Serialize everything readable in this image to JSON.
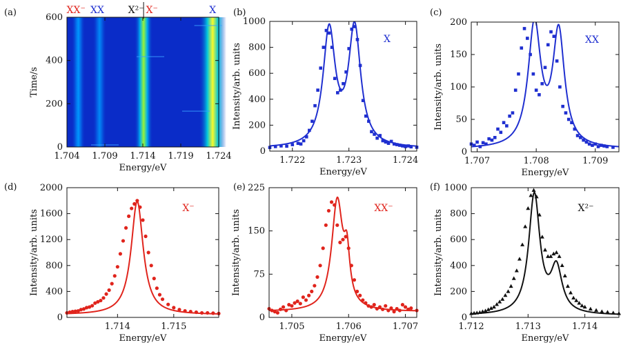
{
  "colors": {
    "blue": "#1f2fd0",
    "red": "#e0241c",
    "black": "#111111",
    "darkred": "#c0141e"
  },
  "chart_data": [
    {
      "id": "a",
      "panel_label": "(a)",
      "type": "heatmap",
      "xlabel": "Energy/eV",
      "ylabel": "Time/s",
      "xlim": [
        1.704,
        1.724
      ],
      "ylim": [
        0,
        600
      ],
      "xticks": [
        "1.704",
        "1.709",
        "1.714",
        "1.719",
        "1.724"
      ],
      "yticks": [
        "0",
        "200",
        "400",
        "600"
      ],
      "lines": [
        {
          "energy": 1.7055,
          "intensity": 0.35,
          "width": 0.0003
        },
        {
          "energy": 1.7083,
          "intensity": 0.3,
          "width": 0.0003
        },
        {
          "energy": 1.7141,
          "intensity": 0.85,
          "width": 0.0004
        },
        {
          "energy": 1.7232,
          "intensity": 1.0,
          "width": 0.0006
        }
      ],
      "top_labels": [
        {
          "text": "XX⁻",
          "energy": 1.7052,
          "color": "red"
        },
        {
          "text": "XX",
          "energy": 1.708,
          "color": "blue"
        },
        {
          "text": "X²⁻",
          "energy": 1.7131,
          "color": "black"
        },
        {
          "text": "X⁻",
          "energy": 1.7152,
          "color": "red"
        },
        {
          "text": "X",
          "energy": 1.7232,
          "color": "blue"
        }
      ]
    },
    {
      "id": "b",
      "panel_label": "(b)",
      "type": "line",
      "color": "blue",
      "marker": "square",
      "annotation": "X",
      "xlabel": "Energy/eV",
      "ylabel": "Intensity/arb. units",
      "xlim": [
        1.7216,
        1.7242
      ],
      "ylim": [
        0,
        1000
      ],
      "xticks": [
        1.722,
        1.723,
        1.724
      ],
      "xticklabels": [
        "1.722",
        "1.723",
        "1.724"
      ],
      "yticks": [
        0,
        200,
        400,
        600,
        800,
        1000
      ],
      "yticklabels": [
        "0",
        "200",
        "400",
        "600",
        "800",
        "1000"
      ],
      "fit": {
        "baseline": 20,
        "peaks": [
          {
            "x0": 1.72265,
            "amp": 890,
            "w": 0.00013
          },
          {
            "x0": 1.7231,
            "amp": 910,
            "w": 0.00013
          }
        ]
      },
      "points": [
        [
          1.7216,
          28
        ],
        [
          1.7217,
          35
        ],
        [
          1.7218,
          40
        ],
        [
          1.7219,
          38
        ],
        [
          1.722,
          50
        ],
        [
          1.7221,
          60
        ],
        [
          1.72215,
          55
        ],
        [
          1.7222,
          80
        ],
        [
          1.72225,
          110
        ],
        [
          1.7223,
          160
        ],
        [
          1.72235,
          230
        ],
        [
          1.7224,
          350
        ],
        [
          1.72245,
          470
        ],
        [
          1.7225,
          640
        ],
        [
          1.72255,
          800
        ],
        [
          1.7226,
          930
        ],
        [
          1.72265,
          910
        ],
        [
          1.7227,
          800
        ],
        [
          1.72275,
          560
        ],
        [
          1.7228,
          450
        ],
        [
          1.72285,
          470
        ],
        [
          1.7229,
          520
        ],
        [
          1.72295,
          610
        ],
        [
          1.723,
          790
        ],
        [
          1.72305,
          940
        ],
        [
          1.7231,
          960
        ],
        [
          1.72315,
          860
        ],
        [
          1.7232,
          660
        ],
        [
          1.72325,
          390
        ],
        [
          1.7233,
          270
        ],
        [
          1.72335,
          230
        ],
        [
          1.7234,
          150
        ],
        [
          1.72345,
          130
        ],
        [
          1.7235,
          100
        ],
        [
          1.72355,
          120
        ],
        [
          1.7236,
          80
        ],
        [
          1.72365,
          70
        ],
        [
          1.7237,
          60
        ],
        [
          1.72375,
          75
        ],
        [
          1.7238,
          55
        ],
        [
          1.72385,
          50
        ],
        [
          1.7239,
          45
        ],
        [
          1.72395,
          40
        ],
        [
          1.724,
          35
        ],
        [
          1.72405,
          40
        ],
        [
          1.7241,
          33
        ],
        [
          1.7242,
          30
        ]
      ]
    },
    {
      "id": "c",
      "panel_label": "(c)",
      "type": "line",
      "color": "blue",
      "marker": "square",
      "annotation": "XX",
      "xlabel": "Energy/eV",
      "ylabel": "Intensity/arb. units",
      "xlim": [
        1.7069,
        1.7094
      ],
      "ylim": [
        0,
        200
      ],
      "xticks": [
        1.707,
        1.708,
        1.709
      ],
      "xticklabels": [
        "1.707",
        "1.708",
        "1.709"
      ],
      "yticks": [
        0,
        50,
        100,
        150,
        200
      ],
      "yticklabels": [
        "0",
        "50",
        "100",
        "150",
        "200"
      ],
      "fit": {
        "baseline": 4,
        "peaks": [
          {
            "x0": 1.70797,
            "amp": 188,
            "w": 0.00013
          },
          {
            "x0": 1.70838,
            "amp": 175,
            "w": 0.00012
          }
        ]
      },
      "points": [
        [
          1.7069,
          12
        ],
        [
          1.70695,
          10
        ],
        [
          1.707,
          15
        ],
        [
          1.70705,
          8
        ],
        [
          1.7071,
          14
        ],
        [
          1.70715,
          12
        ],
        [
          1.7072,
          20
        ],
        [
          1.70725,
          18
        ],
        [
          1.7073,
          22
        ],
        [
          1.70735,
          35
        ],
        [
          1.7074,
          30
        ],
        [
          1.70745,
          45
        ],
        [
          1.7075,
          40
        ],
        [
          1.70755,
          55
        ],
        [
          1.7076,
          60
        ],
        [
          1.70765,
          95
        ],
        [
          1.7077,
          120
        ],
        [
          1.70775,
          160
        ],
        [
          1.7078,
          190
        ],
        [
          1.70785,
          175
        ],
        [
          1.7079,
          150
        ],
        [
          1.70795,
          120
        ],
        [
          1.708,
          95
        ],
        [
          1.70805,
          88
        ],
        [
          1.7081,
          105
        ],
        [
          1.70815,
          130
        ],
        [
          1.7082,
          165
        ],
        [
          1.70825,
          185
        ],
        [
          1.7083,
          178
        ],
        [
          1.70835,
          140
        ],
        [
          1.7084,
          100
        ],
        [
          1.70845,
          70
        ],
        [
          1.7085,
          60
        ],
        [
          1.70855,
          50
        ],
        [
          1.7086,
          45
        ],
        [
          1.70865,
          35
        ],
        [
          1.7087,
          25
        ],
        [
          1.70875,
          22
        ],
        [
          1.7088,
          18
        ],
        [
          1.70885,
          15
        ],
        [
          1.7089,
          12
        ],
        [
          1.70895,
          10
        ],
        [
          1.709,
          12
        ],
        [
          1.70905,
          8
        ],
        [
          1.7091,
          10
        ],
        [
          1.70915,
          9
        ],
        [
          1.7092,
          8
        ],
        [
          1.7093,
          7
        ]
      ]
    },
    {
      "id": "d",
      "panel_label": "(d)",
      "type": "line",
      "color": "red",
      "marker": "circle",
      "annotation": "X⁻",
      "xlabel": "Energy/eV",
      "ylabel": "Intensity/arb. units",
      "xlim": [
        1.7131,
        1.7158
      ],
      "ylim": [
        0,
        2000
      ],
      "xticks": [
        1.714,
        1.715
      ],
      "xticklabels": [
        "1.714",
        "1.715"
      ],
      "yticks": [
        0,
        400,
        800,
        1200,
        1600,
        2000
      ],
      "yticklabels": [
        "0",
        "400",
        "800",
        "1200",
        "1600",
        "2000"
      ],
      "fit": {
        "baseline": 40,
        "peaks": [
          {
            "x0": 1.71435,
            "amp": 1750,
            "w": 0.00013
          }
        ]
      },
      "points": [
        [
          1.7131,
          70
        ],
        [
          1.71315,
          80
        ],
        [
          1.7132,
          90
        ],
        [
          1.71325,
          95
        ],
        [
          1.7133,
          100
        ],
        [
          1.71335,
          120
        ],
        [
          1.7134,
          130
        ],
        [
          1.71345,
          150
        ],
        [
          1.7135,
          160
        ],
        [
          1.71355,
          180
        ],
        [
          1.7136,
          220
        ],
        [
          1.71365,
          240
        ],
        [
          1.7137,
          260
        ],
        [
          1.71375,
          300
        ],
        [
          1.7138,
          360
        ],
        [
          1.71385,
          420
        ],
        [
          1.7139,
          520
        ],
        [
          1.71395,
          640
        ],
        [
          1.714,
          780
        ],
        [
          1.71405,
          980
        ],
        [
          1.7141,
          1180
        ],
        [
          1.71415,
          1380
        ],
        [
          1.7142,
          1560
        ],
        [
          1.71425,
          1680
        ],
        [
          1.7143,
          1750
        ],
        [
          1.71435,
          1800
        ],
        [
          1.7144,
          1700
        ],
        [
          1.71445,
          1500
        ],
        [
          1.7145,
          1250
        ],
        [
          1.71455,
          1000
        ],
        [
          1.7146,
          800
        ],
        [
          1.71465,
          600
        ],
        [
          1.7147,
          450
        ],
        [
          1.71475,
          350
        ],
        [
          1.7148,
          280
        ],
        [
          1.7149,
          200
        ],
        [
          1.715,
          150
        ],
        [
          1.7151,
          120
        ],
        [
          1.7152,
          100
        ],
        [
          1.7153,
          90
        ],
        [
          1.7154,
          80
        ],
        [
          1.7155,
          70
        ],
        [
          1.7156,
          70
        ],
        [
          1.7157,
          65
        ],
        [
          1.7158,
          60
        ]
      ]
    },
    {
      "id": "e",
      "panel_label": "(e)",
      "type": "line",
      "color": "red",
      "marker": "circle",
      "annotation": "XX⁻",
      "xlabel": "Energy/eV",
      "ylabel": "Intensity/arb. units",
      "xlim": [
        1.7046,
        1.7072
      ],
      "ylim": [
        0,
        225
      ],
      "xticks": [
        1.705,
        1.706,
        1.707
      ],
      "xticklabels": [
        "1.705",
        "1.706",
        "1.707"
      ],
      "yticks": [
        0,
        75,
        150,
        225
      ],
      "yticklabels": [
        "0",
        "75",
        "150",
        "225"
      ],
      "fit": {
        "baseline": 10,
        "peaks": [
          {
            "x0": 1.7058,
            "amp": 190,
            "w": 0.00012
          },
          {
            "x0": 1.70597,
            "amp": 75,
            "w": 6e-05
          }
        ]
      },
      "points": [
        [
          1.7046,
          15
        ],
        [
          1.70465,
          12
        ],
        [
          1.7047,
          10
        ],
        [
          1.70475,
          8
        ],
        [
          1.7048,
          14
        ],
        [
          1.70485,
          18
        ],
        [
          1.7049,
          12
        ],
        [
          1.70495,
          22
        ],
        [
          1.705,
          20
        ],
        [
          1.70505,
          25
        ],
        [
          1.7051,
          28
        ],
        [
          1.70515,
          24
        ],
        [
          1.7052,
          35
        ],
        [
          1.70525,
          30
        ],
        [
          1.7053,
          38
        ],
        [
          1.70535,
          45
        ],
        [
          1.7054,
          55
        ],
        [
          1.70545,
          70
        ],
        [
          1.7055,
          90
        ],
        [
          1.70555,
          120
        ],
        [
          1.7056,
          160
        ],
        [
          1.70565,
          185
        ],
        [
          1.7057,
          200
        ],
        [
          1.70575,
          195
        ],
        [
          1.7058,
          160
        ],
        [
          1.70585,
          130
        ],
        [
          1.7059,
          135
        ],
        [
          1.70595,
          140
        ],
        [
          1.706,
          120
        ],
        [
          1.70605,
          90
        ],
        [
          1.7061,
          65
        ],
        [
          1.70615,
          45
        ],
        [
          1.7062,
          38
        ],
        [
          1.70625,
          30
        ],
        [
          1.7063,
          25
        ],
        [
          1.70635,
          20
        ],
        [
          1.7064,
          18
        ],
        [
          1.70645,
          22
        ],
        [
          1.7065,
          15
        ],
        [
          1.70655,
          18
        ],
        [
          1.7066,
          14
        ],
        [
          1.70665,
          20
        ],
        [
          1.7067,
          12
        ],
        [
          1.70675,
          16
        ],
        [
          1.7068,
          10
        ],
        [
          1.70685,
          15
        ],
        [
          1.7069,
          12
        ],
        [
          1.70695,
          22
        ],
        [
          1.707,
          18
        ],
        [
          1.70705,
          14
        ],
        [
          1.7071,
          16
        ],
        [
          1.7072,
          12
        ]
      ]
    },
    {
      "id": "f",
      "panel_label": "(f)",
      "type": "line",
      "color": "black",
      "marker": "triangle",
      "annotation": "X²⁻",
      "xlabel": "Energy/eV",
      "ylabel": "Intensity/arb. units",
      "xlim": [
        1.712,
        1.7146
      ],
      "ylim": [
        0,
        1000
      ],
      "xticks": [
        1.712,
        1.713,
        1.714
      ],
      "xticklabels": [
        "1.712",
        "1.713",
        "1.714"
      ],
      "yticks": [
        0,
        200,
        400,
        600,
        800,
        1000
      ],
      "yticklabels": [
        "0",
        "200",
        "400",
        "600",
        "800",
        "1000"
      ],
      "fit": {
        "baseline": 15,
        "peaks": [
          {
            "x0": 1.71311,
            "amp": 920,
            "w": 0.00012
          },
          {
            "x0": 1.7135,
            "amp": 340,
            "w": 0.00012
          }
        ]
      },
      "points": [
        [
          1.712,
          30
        ],
        [
          1.71205,
          32
        ],
        [
          1.7121,
          35
        ],
        [
          1.71215,
          38
        ],
        [
          1.7122,
          45
        ],
        [
          1.71225,
          50
        ],
        [
          1.7123,
          60
        ],
        [
          1.71235,
          70
        ],
        [
          1.7124,
          80
        ],
        [
          1.71245,
          100
        ],
        [
          1.7125,
          120
        ],
        [
          1.71255,
          140
        ],
        [
          1.7126,
          170
        ],
        [
          1.71265,
          200
        ],
        [
          1.7127,
          240
        ],
        [
          1.71275,
          300
        ],
        [
          1.7128,
          360
        ],
        [
          1.71285,
          450
        ],
        [
          1.7129,
          560
        ],
        [
          1.71295,
          700
        ],
        [
          1.713,
          840
        ],
        [
          1.71305,
          940
        ],
        [
          1.7131,
          980
        ],
        [
          1.71315,
          930
        ],
        [
          1.7132,
          790
        ],
        [
          1.71325,
          620
        ],
        [
          1.7133,
          520
        ],
        [
          1.71335,
          470
        ],
        [
          1.7134,
          470
        ],
        [
          1.71345,
          490
        ],
        [
          1.7135,
          500
        ],
        [
          1.71355,
          470
        ],
        [
          1.7136,
          400
        ],
        [
          1.71365,
          320
        ],
        [
          1.7137,
          240
        ],
        [
          1.71375,
          190
        ],
        [
          1.7138,
          150
        ],
        [
          1.71385,
          130
        ],
        [
          1.7139,
          110
        ],
        [
          1.71395,
          90
        ],
        [
          1.714,
          80
        ],
        [
          1.7141,
          65
        ],
        [
          1.7142,
          55
        ],
        [
          1.7143,
          45
        ],
        [
          1.7144,
          40
        ],
        [
          1.7145,
          35
        ],
        [
          1.7146,
          30
        ]
      ]
    }
  ]
}
